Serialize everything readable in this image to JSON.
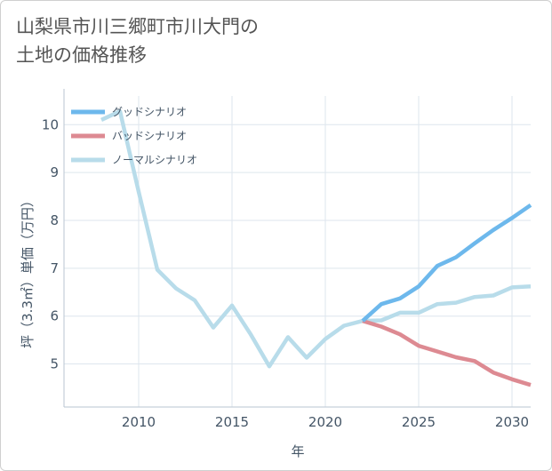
{
  "title": {
    "line1": "山梨県市川三郷町市川大門の",
    "line2": "土地の価格推移"
  },
  "chart_data": {
    "type": "line",
    "xlabel": "年",
    "ylabel": "坪（3.3㎡）単価（万円）",
    "xlim": [
      2006,
      2031
    ],
    "ylim": [
      4.1,
      10.6
    ],
    "xticks": [
      2010,
      2015,
      2020,
      2025,
      2030
    ],
    "yticks": [
      5,
      6,
      7,
      8,
      9,
      10
    ],
    "grid": true,
    "legend_position": "top-left",
    "series": [
      {
        "name": "グッドシナリオ",
        "color": "#6db8ec",
        "x": [
          2022,
          2023,
          2024,
          2025,
          2026,
          2027,
          2028,
          2029,
          2030,
          2031
        ],
        "y": [
          5.9,
          6.25,
          6.37,
          6.62,
          7.05,
          7.23,
          7.52,
          7.8,
          8.05,
          8.32
        ]
      },
      {
        "name": "バッドシナリオ",
        "color": "#dd8a92",
        "x": [
          2022,
          2023,
          2024,
          2025,
          2026,
          2027,
          2028,
          2029,
          2030,
          2031
        ],
        "y": [
          5.9,
          5.78,
          5.62,
          5.38,
          5.26,
          5.14,
          5.06,
          4.82,
          4.68,
          4.56
        ]
      },
      {
        "name": "ノーマルシナリオ",
        "color": "#b8dcea",
        "x": [
          2008,
          2009,
          2010,
          2011,
          2012,
          2013,
          2014,
          2015,
          2016,
          2017,
          2018,
          2019,
          2020,
          2021,
          2022,
          2023,
          2024,
          2025,
          2026,
          2027,
          2028,
          2029,
          2030,
          2031
        ],
        "y": [
          10.1,
          10.28,
          8.6,
          6.97,
          6.58,
          6.33,
          5.76,
          6.22,
          5.62,
          4.95,
          5.56,
          5.13,
          5.52,
          5.8,
          5.9,
          5.91,
          6.07,
          6.07,
          6.25,
          6.28,
          6.4,
          6.43,
          6.6,
          6.62
        ]
      }
    ]
  }
}
